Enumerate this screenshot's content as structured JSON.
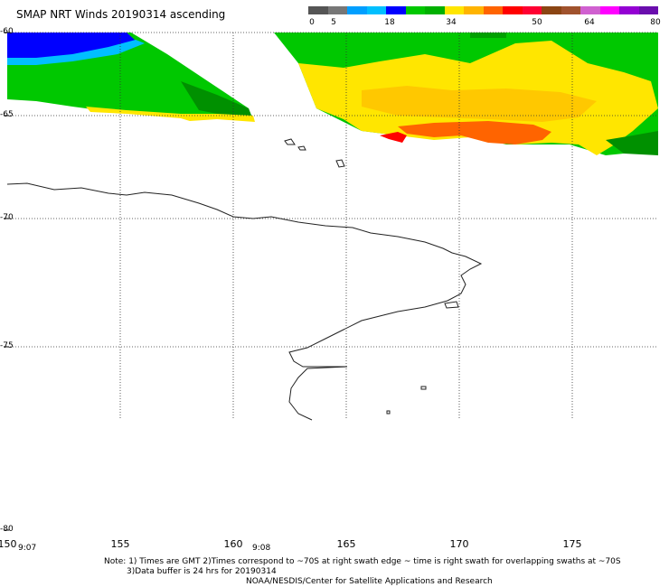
{
  "title": "SMAP NRT Winds 20190314 ascending",
  "legend": {
    "labels": [
      "0",
      "5",
      "18",
      "34",
      "50",
      "64",
      "80"
    ],
    "colors": [
      "#555555",
      "#777777",
      "#009fff",
      "#00bfff",
      "#0000ff",
      "#00c800",
      "#00b000",
      "#ffe600",
      "#ffb400",
      "#ff6400",
      "#ff0000",
      "#ff0032",
      "#8b4513",
      "#a0522d",
      "#d060d0",
      "#ff00ff",
      "#9400d3",
      "#6a0dad"
    ]
  },
  "lat_labels": [
    "-60",
    "-65",
    "-70",
    "-75",
    "-80"
  ],
  "lon_labels": [
    "150",
    "155",
    "160",
    "165",
    "170",
    "175"
  ],
  "times": [
    "9:07",
    "9:08"
  ],
  "notes": {
    "line1": "Note: 1) Times are GMT 2)Times correspond to ~70S at right swath edge ~ time is right swath for overlapping swaths at ~70S",
    "line2": "3)Data buffer is 24 hrs for 20190314",
    "line3": "NOAA/NESDIS/Center for Satellite Applications and Research"
  }
}
